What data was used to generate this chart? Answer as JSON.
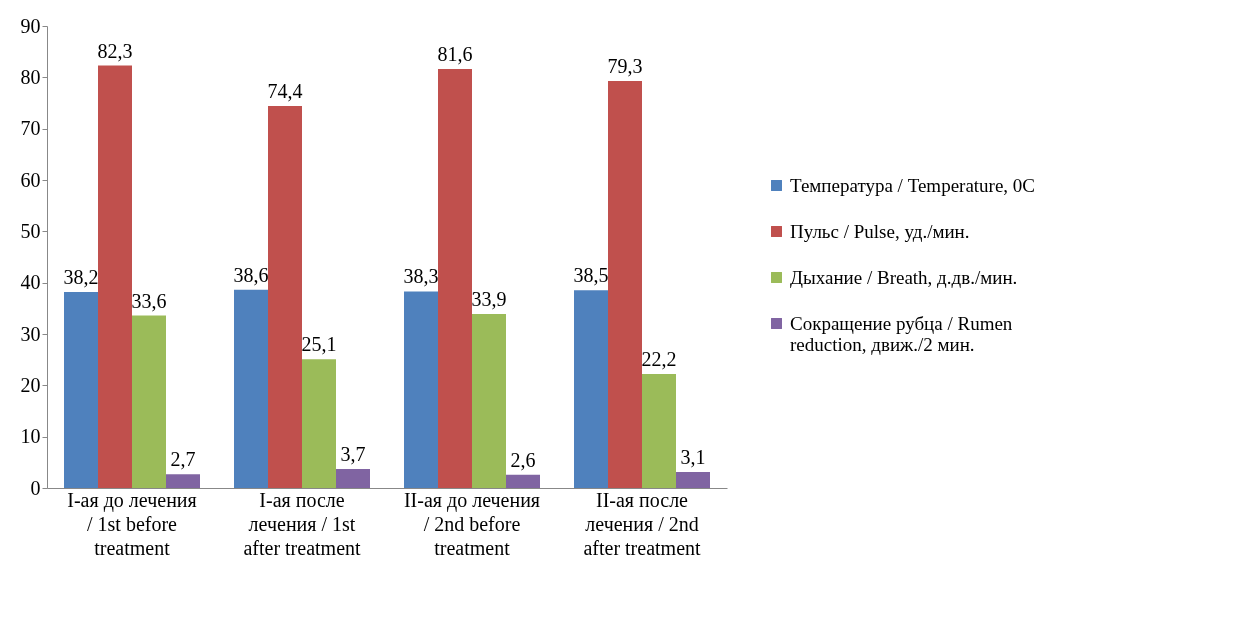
{
  "chart_data": {
    "type": "bar",
    "categories": [
      "I-ая до лечения / 1st before treatment",
      "I-ая после лечения / 1st after treatment",
      "II-ая до лечения / 2nd before treatment",
      "II-ая после лечения / 2nd after treatment"
    ],
    "series": [
      {
        "name": "Температура / Temperature, 0С",
        "color": "#4f81bd",
        "values": [
          38.2,
          38.6,
          38.3,
          38.5
        ],
        "value_labels": [
          "38,2",
          "38,6",
          "38,3",
          "38,5"
        ]
      },
      {
        "name": "Пульс / Pulse, уд./мин.",
        "color": "#c0504d",
        "values": [
          82.3,
          74.4,
          81.6,
          79.3
        ],
        "value_labels": [
          "82,3",
          "74,4",
          "81,6",
          "79,3"
        ]
      },
      {
        "name": "Дыхание / Breath, д.дв./мин.",
        "color": "#9bbb59",
        "values": [
          33.6,
          25.1,
          33.9,
          22.2
        ],
        "value_labels": [
          "33,6",
          "25,1",
          "33,9",
          "22,2"
        ]
      },
      {
        "name": "Сокращение рубца / Rumen reduction, движ./2 мин.",
        "color": "#8064a2",
        "values": [
          2.7,
          3.7,
          2.6,
          3.1
        ],
        "value_labels": [
          "2,7",
          "3,7",
          "2,6",
          "3,1"
        ]
      }
    ],
    "ylim": [
      0,
      90
    ],
    "yticks": [
      0,
      10,
      20,
      30,
      40,
      50,
      60,
      70,
      80,
      90
    ],
    "grid": false,
    "legend": "right"
  }
}
